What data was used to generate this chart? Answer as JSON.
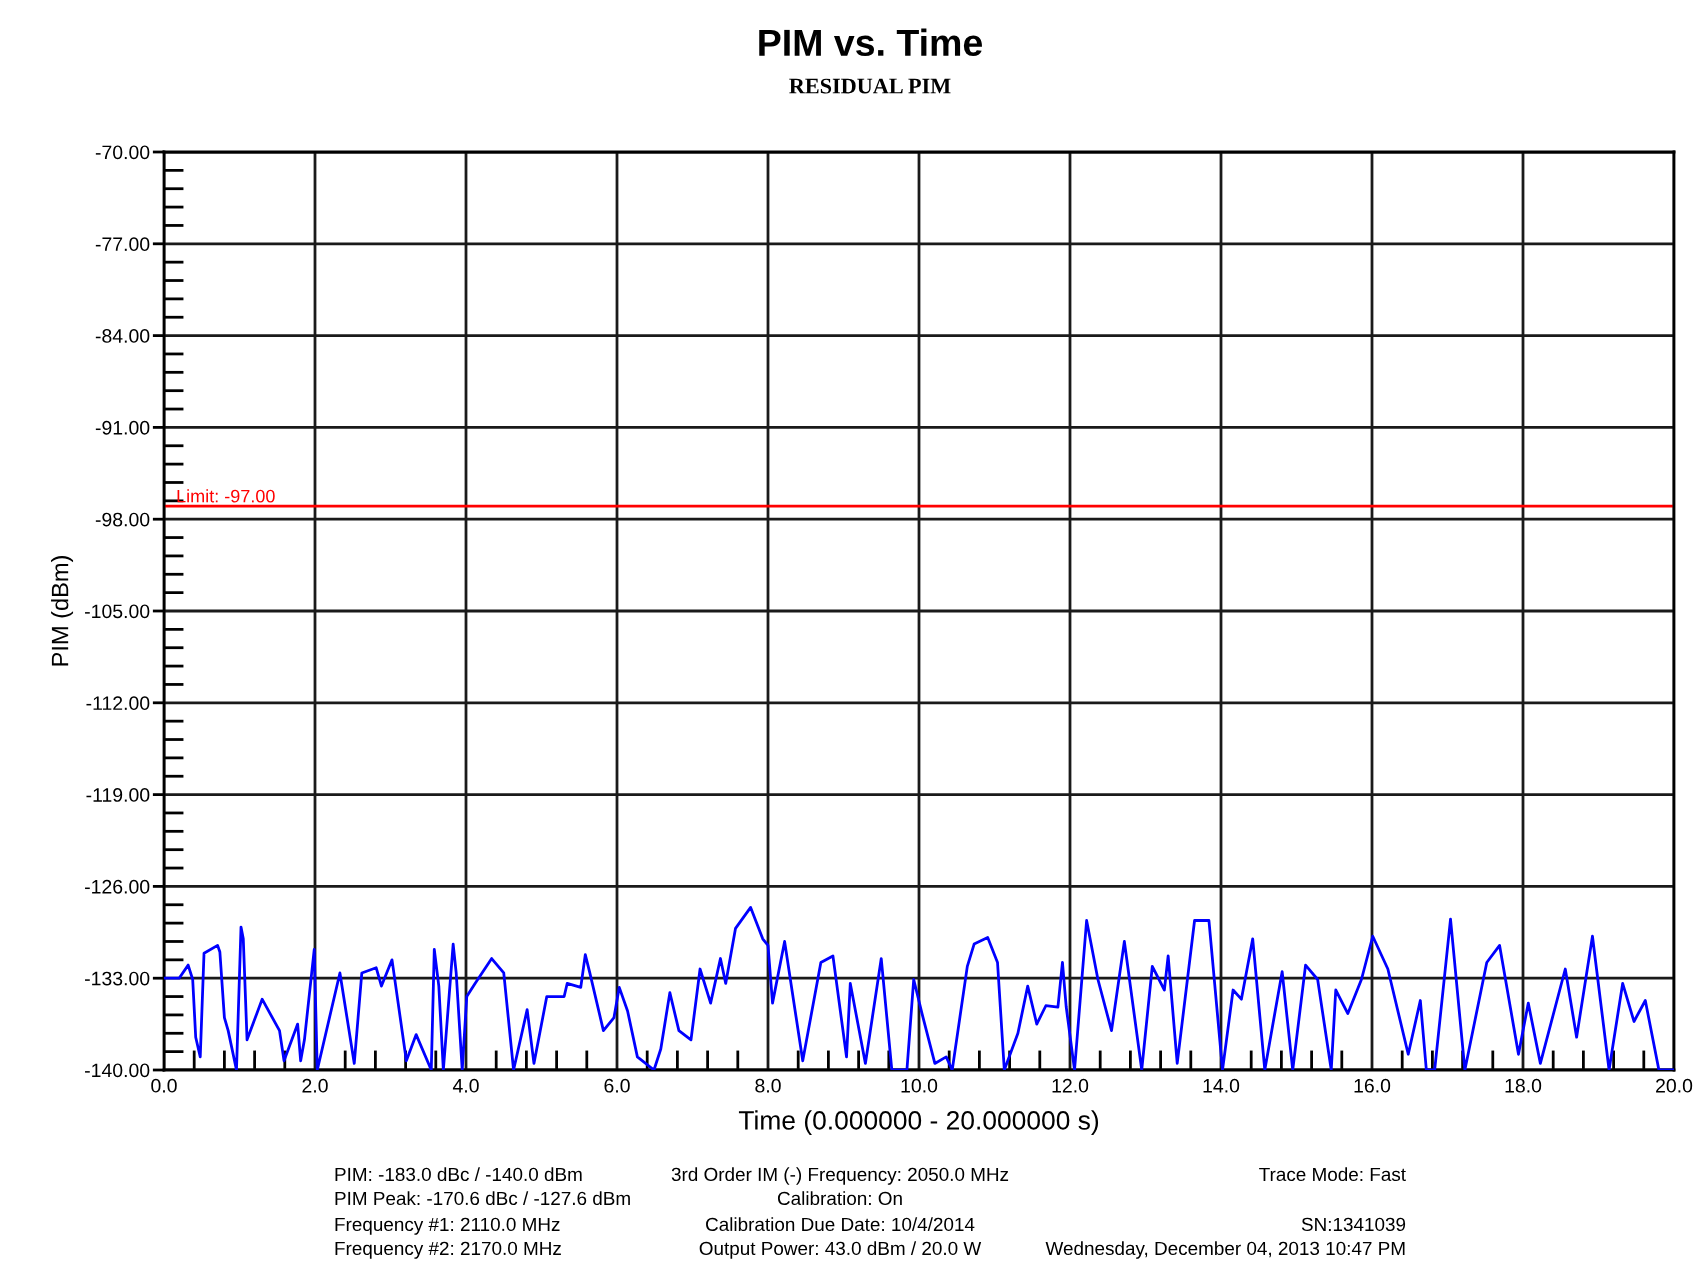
{
  "chart_data": {
    "type": "line",
    "title": "PIM vs. Time",
    "subtitle": "RESIDUAL PIM",
    "xlabel": "Time (0.000000 - 20.000000 s)",
    "ylabel": "PIM (dBm)",
    "x": [
      0,
      0.2,
      0.32,
      0.38,
      0.42,
      0.48,
      0.53,
      0.71,
      0.74,
      0.8,
      0.85,
      0.96,
      1.02,
      1.05,
      1.1,
      1.3,
      1.53,
      1.59,
      1.77,
      1.81,
      1.86,
      1.99,
      2.03,
      2.33,
      2.52,
      2.62,
      2.81,
      2.88,
      3.02,
      3.21,
      3.34,
      3.54,
      3.58,
      3.64,
      3.7,
      3.83,
      3.87,
      3.95,
      4.01,
      4.12,
      4.34,
      4.5,
      4.63,
      4.81,
      4.9,
      5.07,
      5.3,
      5.34,
      5.52,
      5.58,
      5.64,
      5.82,
      5.96,
      6.03,
      6.14,
      6.27,
      6.49,
      6.58,
      6.7,
      6.82,
      6.98,
      7.1,
      7.24,
      7.37,
      7.44,
      7.57,
      7.77,
      7.93,
      8.0,
      8.06,
      8.22,
      8.46,
      8.7,
      8.86,
      9.04,
      9.09,
      9.29,
      9.5,
      9.64,
      9.84,
      9.93,
      10.04,
      10.21,
      10.36,
      10.44,
      10.64,
      10.73,
      10.91,
      11.04,
      11.13,
      11.31,
      11.44,
      11.56,
      11.68,
      11.84,
      11.9,
      11.95,
      12.06,
      12.22,
      12.37,
      12.55,
      12.72,
      12.95,
      13.09,
      13.25,
      13.3,
      13.42,
      13.65,
      13.84,
      14.02,
      14.16,
      14.27,
      14.42,
      14.58,
      14.81,
      14.95,
      15.12,
      15.28,
      15.46,
      15.52,
      15.68,
      15.86,
      16.01,
      16.21,
      16.48,
      16.64,
      16.72,
      16.83,
      17.04,
      17.23,
      17.52,
      17.69,
      17.94,
      18.07,
      18.23,
      18.56,
      18.71,
      18.92,
      19.14,
      19.32,
      19.47,
      19.62,
      19.8,
      20.0
    ],
    "values": [
      -133.0,
      -133.0,
      -132.0,
      -133.1,
      -137.5,
      -139.0,
      -131.1,
      -130.5,
      -131.0,
      -136.0,
      -137.0,
      -140.0,
      -129.1,
      -130.0,
      -137.7,
      -134.6,
      -137.0,
      -139.3,
      -136.5,
      -139.3,
      -137.7,
      -130.8,
      -140.0,
      -132.6,
      -139.5,
      -132.6,
      -132.2,
      -133.6,
      -131.6,
      -139.3,
      -137.3,
      -140.0,
      -130.8,
      -133.6,
      -140.0,
      -130.4,
      -132.6,
      -140.0,
      -134.4,
      -133.4,
      -131.5,
      -132.6,
      -140.0,
      -135.4,
      -139.5,
      -134.4,
      -134.4,
      -133.4,
      -133.7,
      -131.2,
      -132.6,
      -137.0,
      -136.0,
      -133.7,
      -135.5,
      -139.0,
      -140.0,
      -138.4,
      -134.1,
      -137.0,
      -137.7,
      -132.3,
      -134.9,
      -131.5,
      -133.4,
      -129.2,
      -127.6,
      -130.0,
      -130.5,
      -134.9,
      -130.2,
      -139.3,
      -131.8,
      -131.3,
      -139.0,
      -133.4,
      -139.5,
      -131.5,
      -140.0,
      -140.0,
      -133.1,
      -135.7,
      -139.5,
      -139.0,
      -140.0,
      -132.1,
      -130.4,
      -129.9,
      -131.8,
      -140.0,
      -137.2,
      -133.6,
      -136.5,
      -135.1,
      -135.2,
      -131.8,
      -135.2,
      -140.0,
      -128.6,
      -133.1,
      -137.0,
      -130.2,
      -140.0,
      -132.1,
      -133.9,
      -131.3,
      -139.5,
      -128.6,
      -128.6,
      -140.0,
      -133.9,
      -134.6,
      -130.0,
      -140.0,
      -132.5,
      -140.0,
      -132.0,
      -133.1,
      -140.0,
      -133.9,
      -135.7,
      -133.1,
      -129.8,
      -132.3,
      -138.8,
      -134.7,
      -140.0,
      -140.0,
      -128.5,
      -140.0,
      -131.8,
      -130.5,
      -138.8,
      -134.9,
      -139.5,
      -132.3,
      -137.5,
      -129.8,
      -140.0,
      -133.4,
      -136.3,
      -134.7,
      -140.0,
      -140.0
    ],
    "color": "#0000ff",
    "xlim": [
      0,
      20
    ],
    "xticks": [
      {
        "value": 0,
        "label": "0.0"
      },
      {
        "value": 2,
        "label": "2.0"
      },
      {
        "value": 4,
        "label": "4.0"
      },
      {
        "value": 6,
        "label": "6.0"
      },
      {
        "value": 8,
        "label": "8.0"
      },
      {
        "value": 10,
        "label": "10.0"
      },
      {
        "value": 12,
        "label": "12.0"
      },
      {
        "value": 14,
        "label": "14.0"
      },
      {
        "value": 16,
        "label": "16.0"
      },
      {
        "value": 18,
        "label": "18.0"
      },
      {
        "value": 20,
        "label": "20.0"
      }
    ],
    "ylim": [
      -140,
      -70
    ],
    "yticks": [
      {
        "value": -140,
        "label": "-140.00"
      },
      {
        "value": -133,
        "label": "-133.00"
      },
      {
        "value": -126,
        "label": "-126.00"
      },
      {
        "value": -119,
        "label": "-119.00"
      },
      {
        "value": -112,
        "label": "-112.00"
      },
      {
        "value": -105,
        "label": "-105.00"
      },
      {
        "value": -98,
        "label": "-98.00"
      },
      {
        "value": -91,
        "label": "-91.00"
      },
      {
        "value": -84,
        "label": "-84.00"
      },
      {
        "value": -77,
        "label": "-77.00"
      },
      {
        "value": -70,
        "label": "-70.00"
      }
    ],
    "grid": true,
    "ref_lines": [
      {
        "axis": "y",
        "value": -97,
        "label": "Limit: -97.00",
        "color": "#ff0000"
      }
    ],
    "annotations": [
      "PIM: -183.0 dBc / -140.0 dBm",
      "3rd Order IM (-) Frequency: 2050.0 MHz",
      "Trace Mode: Fast",
      "PIM Peak: -170.6 dBc / -127.6 dBm",
      "Calibration: On",
      "Frequency #1: 2110.0 MHz",
      "Calibration Due Date: 10/4/2014",
      "SN:1341039",
      "Frequency #2: 2170.0 MHz",
      "Output Power: 43.0 dBm / 20.0 W",
      "Wednesday, December 04, 2013 10:47 PM"
    ]
  }
}
